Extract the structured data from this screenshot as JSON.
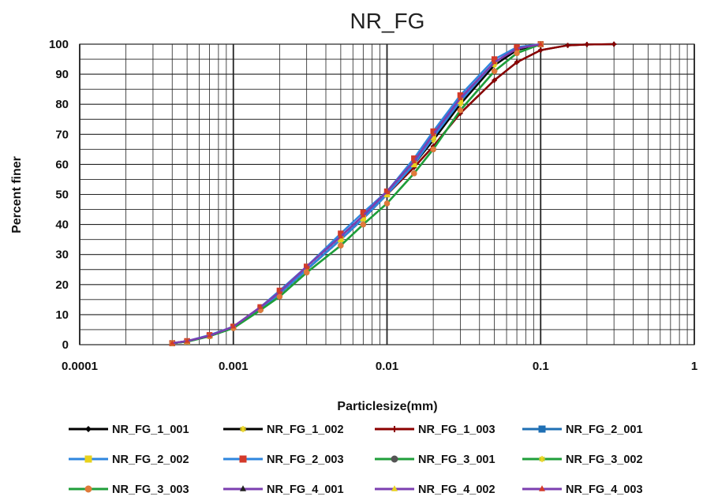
{
  "chart_data": {
    "type": "line",
    "title": "NR_FG",
    "xlabel": "Particlesize(mm)",
    "ylabel": "Percent finer",
    "xscale": "log",
    "xlim": [
      0.0001,
      1
    ],
    "ylim": [
      0,
      100
    ],
    "x_tick_labels": [
      "0.0001",
      "0.001",
      "0.01",
      "0.1",
      "1"
    ],
    "y_tick_labels": [
      "0",
      "10",
      "20",
      "30",
      "40",
      "50",
      "60",
      "70",
      "80",
      "90",
      "100"
    ],
    "grid": true,
    "legend_position": "bottom",
    "series": [
      {
        "name": "NR_FG_1_001",
        "color": "#000000",
        "marker": "diamond",
        "x": [
          0.0004,
          0.0005,
          0.0007,
          0.001,
          0.0015,
          0.002,
          0.003,
          0.005,
          0.007,
          0.01,
          0.015,
          0.02,
          0.03,
          0.05,
          0.07,
          0.1,
          0.15,
          0.2,
          0.3
        ],
        "y": [
          0.5,
          1,
          3,
          6,
          12,
          17,
          25,
          35,
          42,
          50,
          59,
          66,
          77,
          88,
          94,
          98,
          99.6,
          99.9,
          100
        ]
      },
      {
        "name": "NR_FG_1_002",
        "color": "#000000",
        "marker": "star",
        "marker_color": "#e8d21c",
        "x": [
          0.0004,
          0.0005,
          0.0007,
          0.001,
          0.0015,
          0.002,
          0.003,
          0.005,
          0.007,
          0.01,
          0.015,
          0.02,
          0.03,
          0.05,
          0.07,
          0.1
        ],
        "y": [
          0.5,
          1,
          3,
          6,
          12,
          17,
          25,
          35,
          42,
          50,
          60,
          68,
          80,
          93,
          98,
          100
        ]
      },
      {
        "name": "NR_FG_1_003",
        "color": "#8b0000",
        "marker": "plus",
        "x": [
          0.0004,
          0.0005,
          0.0007,
          0.001,
          0.0015,
          0.002,
          0.003,
          0.005,
          0.007,
          0.01,
          0.015,
          0.02,
          0.03,
          0.05,
          0.07,
          0.1,
          0.15,
          0.2,
          0.3
        ],
        "y": [
          0.5,
          1,
          3,
          6,
          12,
          17,
          25,
          35,
          42,
          50,
          59,
          66,
          77,
          88,
          94,
          98,
          99.6,
          99.9,
          100
        ]
      },
      {
        "name": "NR_FG_2_001",
        "color": "#1f6fb4",
        "marker": "square",
        "x": [
          0.0004,
          0.0005,
          0.0007,
          0.001,
          0.0015,
          0.002,
          0.003,
          0.005,
          0.007,
          0.01,
          0.015,
          0.02,
          0.03,
          0.05,
          0.07,
          0.1
        ],
        "y": [
          0.5,
          1,
          3,
          6,
          12,
          17,
          25,
          35,
          42,
          50,
          60,
          69,
          81,
          94,
          98.5,
          100
        ]
      },
      {
        "name": "NR_FG_2_002",
        "color": "#2e86de",
        "marker": "square",
        "marker_color": "#e8d21c",
        "x": [
          0.0004,
          0.0005,
          0.0007,
          0.001,
          0.0015,
          0.002,
          0.003,
          0.005,
          0.007,
          0.01,
          0.015,
          0.02,
          0.03,
          0.05,
          0.07,
          0.1
        ],
        "y": [
          0.5,
          1,
          3,
          6,
          12,
          17,
          25,
          35,
          42,
          50,
          60,
          69,
          81,
          94,
          98.5,
          100
        ]
      },
      {
        "name": "NR_FG_2_003",
        "color": "#2e86de",
        "marker": "square",
        "marker_color": "#d43a2a",
        "x": [
          0.0004,
          0.0005,
          0.0007,
          0.001,
          0.0015,
          0.002,
          0.003,
          0.005,
          0.007,
          0.01,
          0.015,
          0.02,
          0.03,
          0.05,
          0.07,
          0.1
        ],
        "y": [
          0.5,
          1.2,
          3.2,
          6,
          12.5,
          18,
          26,
          37,
          44,
          51,
          62,
          71,
          83,
          95,
          99,
          100
        ]
      },
      {
        "name": "NR_FG_3_001",
        "color": "#1f9e3a",
        "marker": "circle",
        "marker_color": "#555555",
        "x": [
          0.0004,
          0.0005,
          0.0007,
          0.001,
          0.0015,
          0.002,
          0.003,
          0.005,
          0.007,
          0.01,
          0.015,
          0.02,
          0.03,
          0.05,
          0.07,
          0.1
        ],
        "y": [
          0.5,
          1,
          2.8,
          5.5,
          11.5,
          16,
          24,
          33,
          40,
          47,
          57,
          65,
          78,
          91,
          97,
          100
        ]
      },
      {
        "name": "NR_FG_3_002",
        "color": "#1f9e3a",
        "marker": "star",
        "marker_color": "#e8d21c",
        "x": [
          0.0004,
          0.0005,
          0.0007,
          0.001,
          0.0015,
          0.002,
          0.003,
          0.005,
          0.007,
          0.01,
          0.015,
          0.02,
          0.03,
          0.05,
          0.07,
          0.1
        ],
        "y": [
          0.5,
          1,
          2.8,
          5.5,
          11.5,
          16,
          24,
          33,
          40,
          47,
          57,
          65,
          78,
          91,
          97,
          100
        ]
      },
      {
        "name": "NR_FG_3_003",
        "color": "#1f9e3a",
        "marker": "circle",
        "marker_color": "#e07a3a",
        "x": [
          0.0004,
          0.0005,
          0.0007,
          0.001,
          0.0015,
          0.002,
          0.003,
          0.005,
          0.007,
          0.01,
          0.015,
          0.02,
          0.03,
          0.05,
          0.07,
          0.1
        ],
        "y": [
          0.5,
          1,
          2.8,
          5.5,
          11.5,
          16,
          24,
          33,
          40,
          47,
          57,
          65,
          78,
          91,
          97,
          100
        ]
      },
      {
        "name": "NR_FG_4_001",
        "color": "#7b3fb0",
        "marker": "triangle",
        "marker_color": "#222222",
        "x": [
          0.0004,
          0.0005,
          0.0007,
          0.001,
          0.0015,
          0.002,
          0.003,
          0.005,
          0.007,
          0.01,
          0.015,
          0.02,
          0.03,
          0.05,
          0.07,
          0.1
        ],
        "y": [
          0.5,
          1.2,
          3,
          6,
          12.5,
          17.5,
          26,
          36,
          43,
          51,
          61,
          70,
          82,
          94,
          98.5,
          100
        ]
      },
      {
        "name": "NR_FG_4_002",
        "color": "#7b3fb0",
        "marker": "triangle",
        "marker_color": "#e8d21c",
        "x": [
          0.0004,
          0.0005,
          0.0007,
          0.001,
          0.0015,
          0.002,
          0.003,
          0.005,
          0.007,
          0.01,
          0.015,
          0.02,
          0.03,
          0.05,
          0.07,
          0.1
        ],
        "y": [
          0.5,
          1.2,
          3,
          6,
          12.5,
          17.5,
          26,
          36,
          43,
          51,
          61,
          70,
          82,
          94,
          98.5,
          100
        ]
      },
      {
        "name": "NR_FG_4_003",
        "color": "#7b3fb0",
        "marker": "triangle",
        "marker_color": "#d43a2a",
        "x": [
          0.0004,
          0.0005,
          0.0007,
          0.001,
          0.0015,
          0.002,
          0.003,
          0.005,
          0.007,
          0.01,
          0.015,
          0.02,
          0.03,
          0.05,
          0.07,
          0.1
        ],
        "y": [
          0.5,
          1.2,
          3,
          6,
          12.5,
          17.5,
          26,
          36,
          43,
          51,
          61,
          70,
          82,
          94,
          98.5,
          100
        ]
      }
    ]
  }
}
